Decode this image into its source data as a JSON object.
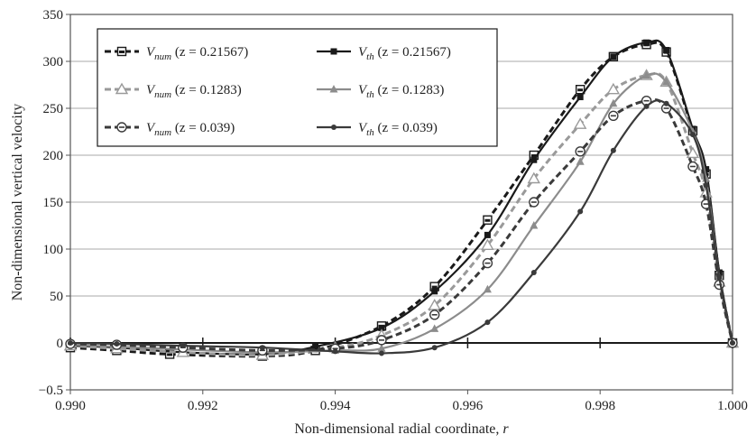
{
  "chart_data": {
    "type": "line",
    "title": "",
    "xlabel": "Non-dimensional radial coordinate, ",
    "xlabel_var": "r",
    "ylabel": "Non-dimensional vertical velocity",
    "xlim": [
      0.99,
      1.0
    ],
    "ylim": [
      -50,
      350
    ],
    "x_ticks": [
      "0.990",
      "0.992",
      "0.994",
      "0.996",
      "0.998",
      "1.000"
    ],
    "y_ticks": [
      "−0.5",
      "0",
      "50",
      "100",
      "150",
      "200",
      "250",
      "300",
      "350"
    ],
    "grid": "horizontal",
    "legend_position": "top-left",
    "series": [
      {
        "label_var": "V",
        "label_sub": "num",
        "label_rest": " (z = 0.21567)",
        "kind": "num",
        "color": "#1a1a1a",
        "marker": "square-dot",
        "points": [
          [
            0.99,
            -5
          ],
          [
            0.9907,
            -8
          ],
          [
            0.9915,
            -12
          ],
          [
            0.9929,
            -14
          ],
          [
            0.9937,
            -8
          ],
          [
            0.9947,
            18
          ],
          [
            0.9955,
            60
          ],
          [
            0.9963,
            131
          ],
          [
            0.997,
            200
          ],
          [
            0.9977,
            270
          ],
          [
            0.9982,
            305
          ],
          [
            0.9987,
            318
          ],
          [
            0.999,
            310
          ],
          [
            0.9994,
            226
          ],
          [
            0.9996,
            180
          ],
          [
            0.9998,
            72
          ],
          [
            1.0,
            0
          ]
        ]
      },
      {
        "label_var": "V",
        "label_sub": "th",
        "label_rest": " (z = 0.21567)",
        "kind": "th",
        "color": "#1a1a1a",
        "marker": "filled-square",
        "points": [
          [
            0.99,
            -3
          ],
          [
            0.9907,
            -5
          ],
          [
            0.9917,
            -10
          ],
          [
            0.9929,
            -12
          ],
          [
            0.9937,
            -4
          ],
          [
            0.9947,
            16
          ],
          [
            0.9955,
            55
          ],
          [
            0.9963,
            115
          ],
          [
            0.997,
            195
          ],
          [
            0.9977,
            262
          ],
          [
            0.9982,
            305
          ],
          [
            0.9987,
            320
          ],
          [
            0.999,
            312
          ],
          [
            0.9994,
            228
          ],
          [
            0.9996,
            185
          ],
          [
            0.9998,
            75
          ],
          [
            1.0,
            0
          ]
        ]
      },
      {
        "label_var": "V",
        "label_sub": "num",
        "label_rest": " (z = 0.1283)",
        "kind": "num",
        "color": "#9a9a9a",
        "marker": "open-triangle",
        "points": [
          [
            0.99,
            -3
          ],
          [
            0.9907,
            -6
          ],
          [
            0.9917,
            -10
          ],
          [
            0.9929,
            -13
          ],
          [
            0.994,
            -5
          ],
          [
            0.9947,
            8
          ],
          [
            0.9955,
            40
          ],
          [
            0.9963,
            104
          ],
          [
            0.997,
            175
          ],
          [
            0.9977,
            233
          ],
          [
            0.9982,
            270
          ],
          [
            0.9987,
            285
          ],
          [
            0.999,
            278
          ],
          [
            0.9994,
            202
          ],
          [
            0.9996,
            160
          ],
          [
            0.9998,
            65
          ],
          [
            1.0,
            0
          ]
        ]
      },
      {
        "label_var": "V",
        "label_sub": "th",
        "label_rest": " (z = 0.1283)",
        "kind": "th",
        "color": "#8c8c8c",
        "marker": "filled-triangle",
        "points": [
          [
            0.99,
            -2
          ],
          [
            0.9907,
            -4
          ],
          [
            0.9917,
            -7
          ],
          [
            0.9929,
            -10
          ],
          [
            0.994,
            -8
          ],
          [
            0.9947,
            -6
          ],
          [
            0.9955,
            15
          ],
          [
            0.9963,
            57
          ],
          [
            0.997,
            125
          ],
          [
            0.9977,
            193
          ],
          [
            0.9982,
            255
          ],
          [
            0.9987,
            285
          ],
          [
            0.999,
            278
          ],
          [
            0.9994,
            225
          ],
          [
            0.9996,
            175
          ],
          [
            0.9998,
            70
          ],
          [
            1.0,
            0
          ]
        ]
      },
      {
        "label_var": "V",
        "label_sub": "num",
        "label_rest": " (z = 0.039)",
        "kind": "num",
        "color": "#3a3a3a",
        "marker": "open-circle",
        "points": [
          [
            0.99,
            -1
          ],
          [
            0.9907,
            -2
          ],
          [
            0.9917,
            -5
          ],
          [
            0.9929,
            -8
          ],
          [
            0.994,
            -6
          ],
          [
            0.9947,
            3
          ],
          [
            0.9955,
            30
          ],
          [
            0.9963,
            85
          ],
          [
            0.997,
            150
          ],
          [
            0.9977,
            204
          ],
          [
            0.9982,
            242
          ],
          [
            0.9987,
            258
          ],
          [
            0.999,
            250
          ],
          [
            0.9994,
            188
          ],
          [
            0.9996,
            148
          ],
          [
            0.9998,
            62
          ],
          [
            1.0,
            0
          ]
        ]
      },
      {
        "label_var": "V",
        "label_sub": "th",
        "label_rest": " (z = 0.039)",
        "kind": "th",
        "color": "#3a3a3a",
        "marker": "filled-circle",
        "points": [
          [
            0.99,
            0
          ],
          [
            0.9907,
            -1
          ],
          [
            0.9917,
            -3
          ],
          [
            0.9929,
            -5
          ],
          [
            0.994,
            -9
          ],
          [
            0.9947,
            -11
          ],
          [
            0.9955,
            -5
          ],
          [
            0.9963,
            22
          ],
          [
            0.997,
            75
          ],
          [
            0.9977,
            140
          ],
          [
            0.9982,
            205
          ],
          [
            0.9987,
            252
          ],
          [
            0.999,
            255
          ],
          [
            0.9994,
            222
          ],
          [
            0.9996,
            168
          ],
          [
            0.9998,
            70
          ],
          [
            1.0,
            0
          ]
        ]
      }
    ]
  }
}
